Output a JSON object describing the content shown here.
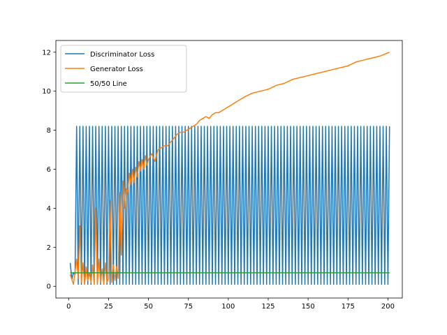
{
  "chart_data": {
    "type": "line",
    "title": "",
    "xlabel": "",
    "ylabel": "",
    "xlim": [
      -8,
      209
    ],
    "ylim": [
      -0.6,
      12.6
    ],
    "xticks": [
      0,
      25,
      50,
      75,
      100,
      125,
      150,
      175,
      200
    ],
    "yticks": [
      0,
      2,
      4,
      6,
      8,
      10,
      12
    ],
    "grid": false,
    "legend_position": "top-left",
    "series": [
      {
        "name": "Discriminator Loss",
        "color": "#1f77b4",
        "pattern": "Oscillates every epoch: ~0.1–1.2 low for epochs 1–4, then alternates between ~8.2–8.4 peaks (odd epochs from 5) and ~0.1 troughs through epoch 201",
        "x_start": 1,
        "x_end": 201,
        "early_values": [
          1.2,
          0.35,
          0.7,
          0.6
        ],
        "peak_value": 8.2,
        "trough_value": 0.1
      },
      {
        "name": "Generator Loss",
        "color": "#ff7f0e",
        "x": [
          1,
          3,
          5,
          6,
          7,
          8,
          9,
          10,
          11,
          12,
          13,
          14,
          15,
          16,
          17,
          18,
          19,
          20,
          21,
          22,
          23,
          24,
          25,
          26,
          27,
          28,
          29,
          30,
          31,
          32,
          33,
          34,
          35,
          36,
          37,
          38,
          39,
          40,
          41,
          42,
          43,
          44,
          45,
          46,
          47,
          48,
          49,
          50,
          52,
          54,
          56,
          58,
          60,
          62,
          64,
          66,
          68,
          70,
          72,
          74,
          76,
          78,
          80,
          82,
          84,
          86,
          88,
          90,
          92,
          94,
          96,
          98,
          100,
          102,
          104,
          106,
          108,
          110,
          115,
          120,
          125,
          130,
          135,
          140,
          145,
          150,
          155,
          160,
          165,
          170,
          175,
          180,
          185,
          190,
          195,
          201
        ],
        "values": [
          0.6,
          0.1,
          1.4,
          0.4,
          3.1,
          0.2,
          1.2,
          0.1,
          1.0,
          0.3,
          0.7,
          0.2,
          1.1,
          0.1,
          4.0,
          0.1,
          1.4,
          0.2,
          0.9,
          0.1,
          1.2,
          0.2,
          0.4,
          4.4,
          0.2,
          1.1,
          0.3,
          1.0,
          0.4,
          4.8,
          1.6,
          5.4,
          4.0,
          5.0,
          4.8,
          5.8,
          5.2,
          6.0,
          5.3,
          6.1,
          5.6,
          6.4,
          5.9,
          6.5,
          6.0,
          6.7,
          6.2,
          6.5,
          6.8,
          6.4,
          7.0,
          7.1,
          7.2,
          7.2,
          7.4,
          7.6,
          7.8,
          7.9,
          7.9,
          8.0,
          8.1,
          8.2,
          8.3,
          8.5,
          8.6,
          8.7,
          8.6,
          8.8,
          8.9,
          8.9,
          9.0,
          9.1,
          9.2,
          9.3,
          9.4,
          9.5,
          9.6,
          9.7,
          9.9,
          10.0,
          10.1,
          10.3,
          10.4,
          10.6,
          10.7,
          10.8,
          10.9,
          11.0,
          11.1,
          11.2,
          11.3,
          11.5,
          11.6,
          11.7,
          11.8,
          12.0
        ]
      },
      {
        "name": "50/50 Line",
        "color": "#2ca02c",
        "x": [
          1,
          201
        ],
        "values": [
          0.693,
          0.693
        ]
      }
    ]
  }
}
